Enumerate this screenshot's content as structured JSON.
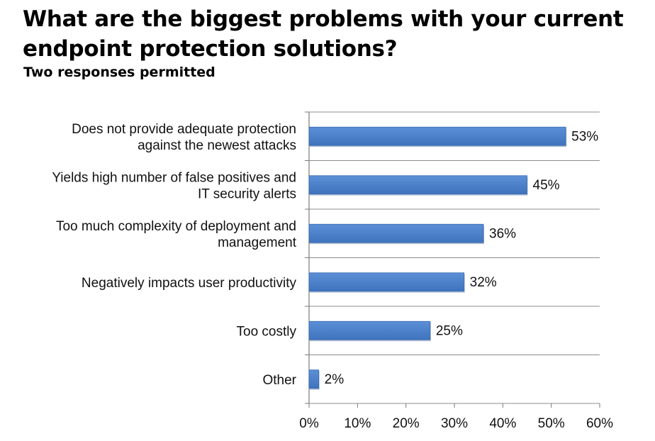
{
  "title": "What are the biggest problems with your current endpoint protection solutions?",
  "subtitle": "Two responses permitted",
  "chart_data": {
    "type": "bar",
    "orientation": "horizontal",
    "categories": [
      [
        "Does not provide adequate protection",
        "against the newest attacks"
      ],
      [
        "Yields high number of false positives and",
        "IT security alerts"
      ],
      [
        "Too much complexity of deployment and",
        "management"
      ],
      [
        "Negatively impacts user productivity"
      ],
      [
        "Too costly"
      ],
      [
        "Other"
      ]
    ],
    "values": [
      53,
      45,
      36,
      32,
      25,
      2
    ],
    "value_labels": [
      "53%",
      "45%",
      "36%",
      "32%",
      "25%",
      "2%"
    ],
    "xlim": [
      0,
      60
    ],
    "xticks": [
      0,
      10,
      20,
      30,
      40,
      50,
      60
    ],
    "xtick_labels": [
      "0%",
      "10%",
      "20%",
      "30%",
      "40%",
      "50%",
      "60%"
    ],
    "bar_color": "#4A7EC6",
    "grid": "horizontal separators",
    "xlabel": "",
    "ylabel": ""
  }
}
